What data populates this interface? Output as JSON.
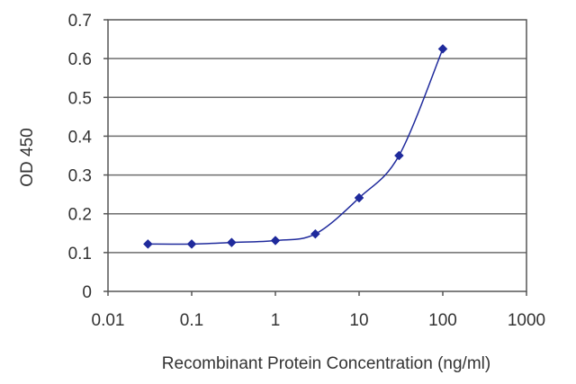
{
  "chart_data": {
    "type": "line",
    "title": "",
    "xlabel": "Recombinant Protein Concentration (ng/ml)",
    "ylabel": "OD 450",
    "x_scale": "log",
    "xlim": [
      0.01,
      1000
    ],
    "ylim": [
      0,
      0.7
    ],
    "x_ticks": [
      0.01,
      0.1,
      1,
      10,
      100,
      1000
    ],
    "x_tick_labels": [
      "0.01",
      "0.1",
      "1",
      "10",
      "100",
      "1000"
    ],
    "y_ticks": [
      0,
      0.1,
      0.2,
      0.3,
      0.4,
      0.5,
      0.6,
      0.7
    ],
    "y_tick_labels": [
      "0",
      "0.1",
      "0.2",
      "0.3",
      "0.4",
      "0.5",
      "0.6",
      "0.7"
    ],
    "grid": "horizontal",
    "legend": "none",
    "series": [
      {
        "x": [
          0.03,
          0.1,
          0.3,
          1,
          3,
          10,
          30,
          100
        ],
        "y": [
          0.122,
          0.122,
          0.126,
          0.131,
          0.148,
          0.241,
          0.35,
          0.625
        ],
        "color": "#1f2a9c"
      }
    ]
  }
}
